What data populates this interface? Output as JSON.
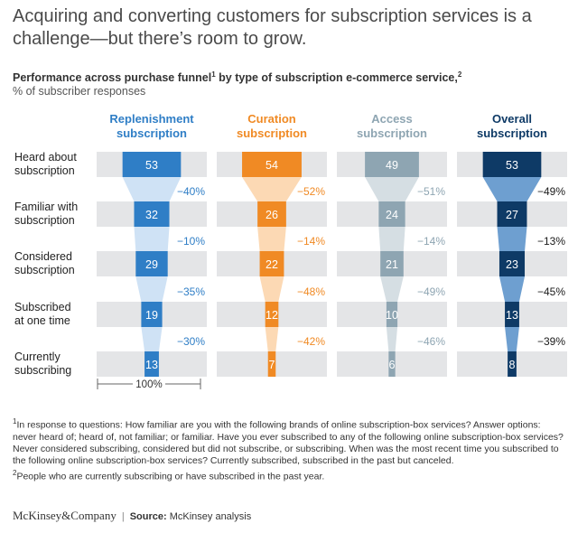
{
  "title": "Acquiring and converting customers for subscription services is a challenge—but there’s room to grow.",
  "subtitle": "Performance across purchase funnel",
  "subtitle_mid": " by type of subscription e-commerce service,",
  "subtitle_fn1": "1",
  "subtitle_fn2": "2",
  "unit_label": "% of subscriber responses",
  "footnotes": {
    "n1_mark": "1",
    "n1": "In response to questions: How familiar are you with the following brands of online subscription-box services? Answer options: never heard of; heard of, not familiar; or familiar. Have you ever subscribed to any of the following online subscription-box services? Never considered subscribing, considered but did not subscribe, or subscribing. When was the most recent time you subscribed to the following online subscription-box services? Currently subscribed, subscribed in the past but canceled.",
    "n2_mark": "2",
    "n2": "People who are currently subscribing or have subscribed in the past year."
  },
  "footer": {
    "brand": "McKinsey&Company",
    "separator": "|",
    "source_label": "Source:",
    "source_text": " McKinsey analysis"
  },
  "chart_data": {
    "type": "funnel",
    "scale_label": "100%",
    "max_value": 100,
    "stages": [
      [
        "Heard about",
        "subscription"
      ],
      [
        "Familiar with",
        "subscription"
      ],
      [
        "Considered",
        "subscription"
      ],
      [
        "Subscribed",
        "at one time"
      ],
      [
        "Currently",
        "subscribing"
      ]
    ],
    "series": [
      {
        "name": [
          "Replenishment",
          "subscription"
        ],
        "color": "#2f7ec6",
        "light": "#cfe2f5",
        "values": [
          53,
          32,
          29,
          19,
          13
        ],
        "changes": [
          "−40%",
          "−10%",
          "−35%",
          "−30%"
        ]
      },
      {
        "name": [
          "Curation",
          "subscription"
        ],
        "color": "#f08a24",
        "light": "#fcd9b4",
        "values": [
          54,
          26,
          22,
          12,
          7
        ],
        "changes": [
          "−52%",
          "−14%",
          "−48%",
          "−42%"
        ]
      },
      {
        "name": [
          "Access",
          "subscription"
        ],
        "color": "#8ea5b2",
        "light": "#d5dee3",
        "values": [
          49,
          24,
          21,
          10,
          6
        ],
        "changes": [
          "−51%",
          "−14%",
          "−49%",
          "−46%"
        ]
      },
      {
        "name": [
          "Overall",
          "subscription"
        ],
        "color": "#0e3a66",
        "light": "#6e9fd0",
        "values": [
          53,
          27,
          23,
          13,
          8
        ],
        "changes": [
          "−49%",
          "−13%",
          "−45%",
          "−39%"
        ]
      }
    ]
  }
}
